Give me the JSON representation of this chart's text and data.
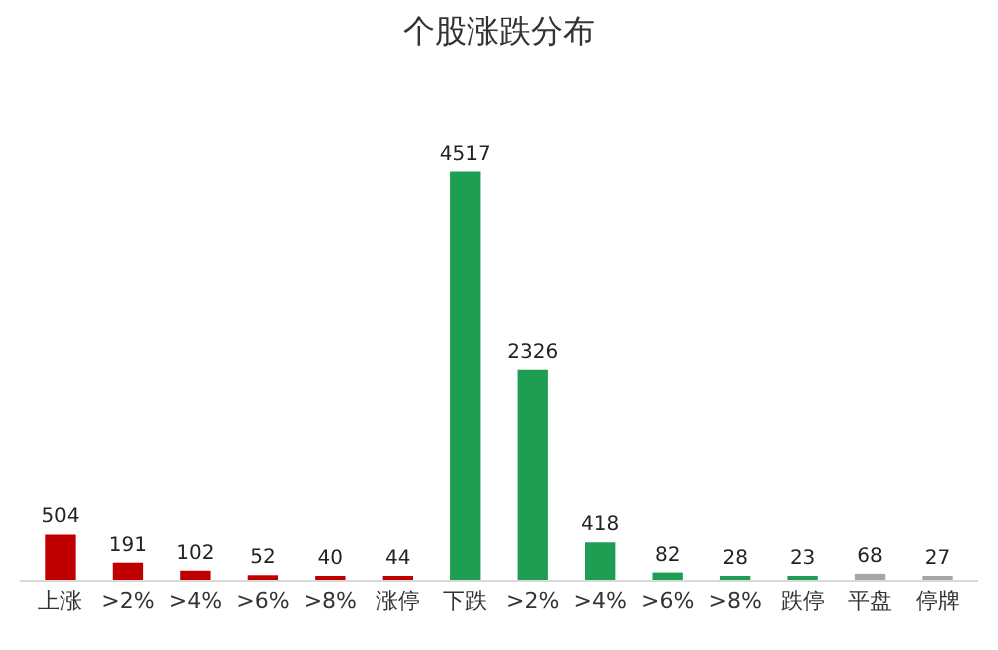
{
  "chart_data": {
    "type": "bar",
    "title": "个股涨跌分布",
    "categories": [
      "上涨",
      ">2%",
      ">4%",
      ">6%",
      ">8%",
      "涨停",
      "下跌",
      ">2%",
      ">4%",
      ">6%",
      ">8%",
      "跌停",
      "平盘",
      "停牌"
    ],
    "values": [
      504,
      191,
      102,
      52,
      40,
      44,
      4517,
      2326,
      418,
      82,
      28,
      23,
      68,
      27
    ],
    "colors": [
      "#c00000",
      "#c00000",
      "#c00000",
      "#c00000",
      "#c00000",
      "#c00000",
      "#1e9e52",
      "#1e9e52",
      "#1e9e52",
      "#1e9e52",
      "#1e9e52",
      "#1e9e52",
      "#a6a6a6",
      "#a6a6a6"
    ],
    "data_labels": true
  }
}
